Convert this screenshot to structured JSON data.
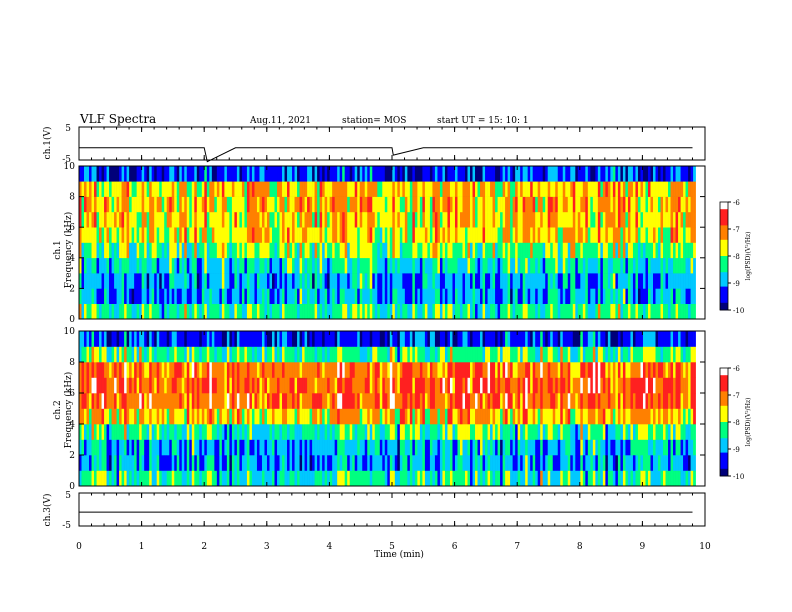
{
  "header": {
    "title": "VLF Spectra",
    "date": "Aug.11, 2021",
    "station": "station= MOS",
    "start": "start  UT =   15: 10: 1"
  },
  "colors": {
    "colormap": [
      "#00007a",
      "#0000ff",
      "#00c8ff",
      "#00ff80",
      "#ffff00",
      "#ff8000",
      "#ff2020",
      "#ffffff"
    ]
  },
  "chart_data": [
    {
      "type": "line",
      "panel": "ch1-waveform",
      "ylabel": "ch.1(V)",
      "ylim": [
        -5,
        5
      ],
      "yticks": [
        "5",
        "-5"
      ],
      "xlim": [
        0,
        10
      ],
      "series": [
        {
          "x": [
            0,
            0.5,
            1,
            1.5,
            2,
            2.05,
            2.5,
            3,
            3.5,
            4,
            4.5,
            5,
            5.02,
            5.5,
            6,
            6.5,
            7,
            7.5,
            8,
            8.5,
            9,
            9.5,
            9.8
          ],
          "y": [
            -1.3,
            -1.3,
            -1.3,
            -1.3,
            -1.3,
            -5.5,
            -1.3,
            -1.3,
            -1.3,
            -1.3,
            -1.3,
            -1.3,
            -3.5,
            -1.3,
            -1.3,
            -1.3,
            -1.3,
            -1.3,
            -1.3,
            -1.3,
            -1.3,
            -1.3,
            -1.3
          ]
        }
      ]
    },
    {
      "type": "heatmap",
      "panel": "ch1-spectrogram",
      "ylabel": "ch.1\nFrequency (kHz)",
      "ylim": [
        0,
        10
      ],
      "yticks": [
        "0",
        "2",
        "4",
        "6",
        "8",
        "10"
      ],
      "xlim": [
        0,
        9.85
      ],
      "colorbar": {
        "label": "log(PSD)(V²/Hz)",
        "range": [
          -10,
          -6
        ],
        "ticks": [
          "-6",
          "-7",
          "-8",
          "-9",
          "-10"
        ]
      },
      "frequency_bins_khz": [
        0.5,
        1.5,
        2.5,
        3.5,
        4.5,
        5.5,
        6.5,
        7.5,
        8.5,
        9.5
      ],
      "mean_log_psd": [
        -8.3,
        -8.9,
        -8.9,
        -8.6,
        -8.1,
        -7.6,
        -7.5,
        -7.4,
        -7.5,
        -9.4
      ]
    },
    {
      "type": "heatmap",
      "panel": "ch2-spectrogram",
      "ylabel": "ch.2\nFrequency (kHz)",
      "ylim": [
        0,
        10
      ],
      "yticks": [
        "0",
        "2",
        "4",
        "6",
        "8",
        "10"
      ],
      "xlim": [
        0,
        9.85
      ],
      "colorbar": {
        "label": "log(PSD)(V²/Hz)",
        "range": [
          -10,
          -6
        ],
        "ticks": [
          "-6",
          "-7",
          "-8",
          "-9",
          "-10"
        ]
      },
      "frequency_bins_khz": [
        0.5,
        1.5,
        2.5,
        3.5,
        4.5,
        5.5,
        6.5,
        7.5,
        8.5,
        9.5
      ],
      "mean_log_psd": [
        -8.4,
        -8.9,
        -8.8,
        -8.3,
        -7.4,
        -6.9,
        -6.8,
        -7.0,
        -8.2,
        -9.4
      ]
    },
    {
      "type": "line",
      "panel": "ch3-waveform",
      "ylabel": "ch.3(V)",
      "ylim": [
        -5,
        5
      ],
      "yticks": [
        "5",
        "-5"
      ],
      "xlabel": "Time (min)",
      "xlim": [
        0,
        10
      ],
      "xticks": [
        "0",
        "1",
        "2",
        "3",
        "4",
        "5",
        "6",
        "7",
        "8",
        "9",
        "10"
      ],
      "series": [
        {
          "x": [
            0,
            1,
            2,
            3,
            4,
            5,
            6,
            7,
            8,
            9,
            9.8
          ],
          "y": [
            -0.8,
            -0.8,
            -0.8,
            -0.8,
            -0.8,
            -0.8,
            -0.8,
            -0.8,
            -0.8,
            -0.8,
            -0.8
          ]
        }
      ]
    }
  ]
}
